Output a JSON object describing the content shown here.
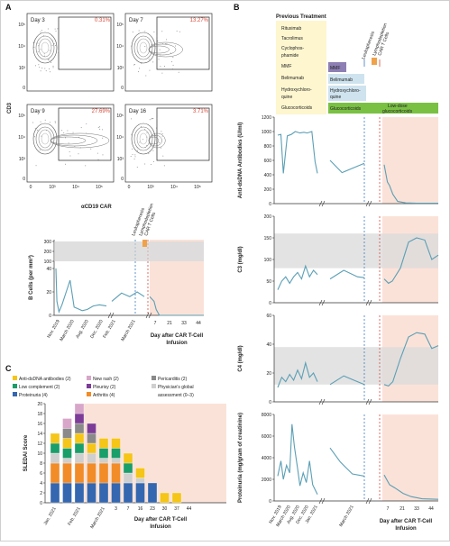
{
  "panels": {
    "a": "A",
    "b": "B",
    "c": "C"
  },
  "flow": {
    "ylabel": "CD3",
    "xlabel": "αCD19 CAR",
    "ticks": [
      "0",
      "10³",
      "10⁴",
      "10⁵"
    ],
    "plots": [
      {
        "day": "Day 3",
        "pct": "0.31%",
        "band": 0.0
      },
      {
        "day": "Day 7",
        "pct": "13.27%",
        "band": 0.5
      },
      {
        "day": "Day 9",
        "pct": "27.69%",
        "band": 1.0
      },
      {
        "day": "Day 16",
        "pct": "3.71%",
        "band": 0.15
      }
    ]
  },
  "labels": {
    "leukapheresis": "Leukapheresis",
    "lymphodepletion": "Lymphodepletion",
    "car_t": "CAR T Cells",
    "day_after": "Day after CAR T-Cell",
    "infusion": "Infusion"
  },
  "treatment": {
    "title": "Previous Treatment",
    "items": [
      "Rituximab",
      "Tacrolimus",
      "Cyclophos-",
      "phamide",
      "MMF",
      "Belimumab",
      "Hydroxychloro-",
      "quine",
      "Glucocorticoids"
    ],
    "bars": {
      "mmf": "MMF",
      "belimumab": "Belimumab",
      "hcq1": "Hydroxychloro-",
      "hcq2": "quine",
      "gluco": "Glucocorticoids",
      "lowdose1": "Low-dose",
      "lowdose2": "glucocorticoids"
    }
  },
  "colors": {
    "line": "#5b9fb5",
    "grey": "#dcdcdc",
    "pink": "#fbe2d8",
    "yellow": "#fdf6cf",
    "purple": "#8d7fb3",
    "green": "#7ac143",
    "blue_bar": "#cfe3ef"
  },
  "chart_data": [
    {
      "type": "line",
      "title": "",
      "ylabel": "B Cells (per mm³)",
      "yticks": [
        "0",
        "20",
        "40",
        "100",
        "200",
        "300"
      ],
      "x_pre": [
        "Nov. 2019",
        "March 2020",
        "Aug. 2020",
        "Dec. 2020"
      ],
      "x_mid": [
        "Feb. 2021",
        "March 2021"
      ],
      "x_post": [
        "7",
        "21",
        "33",
        "44"
      ],
      "normal_range": [
        100,
        300
      ],
      "series": [
        {
          "segment": "pre",
          "x": [
            0,
            0.02,
            0.06,
            0.12,
            0.28,
            0.36,
            0.42,
            0.52,
            0.62,
            0.74,
            0.86,
            1.0
          ],
          "y": [
            40,
            12,
            3,
            9,
            30,
            7,
            6,
            4,
            5,
            8,
            9,
            8
          ]
        },
        {
          "segment": "mid",
          "x": [
            0,
            0.3,
            0.55,
            0.78,
            1.0
          ],
          "y": [
            12,
            19,
            16,
            20,
            16
          ]
        },
        {
          "segment": "post",
          "x": [
            0,
            0.08,
            0.12,
            0.18,
            0.3,
            0.5,
            0.7,
            1.0
          ],
          "y": [
            16,
            12,
            5,
            0,
            0,
            0,
            0,
            0
          ]
        }
      ]
    },
    {
      "type": "bar",
      "ylabel": "SLEDAI Score",
      "ylim": [
        0,
        20
      ],
      "yticks": [
        "0",
        "2",
        "4",
        "6",
        "8",
        "10",
        "12",
        "14",
        "16",
        "18",
        "20"
      ],
      "categories": [
        "Jan. 2021",
        "",
        "Feb. 2021",
        "",
        "March 2021",
        "3",
        "7",
        "16",
        "23",
        "30",
        "37",
        "44"
      ],
      "legend": [
        {
          "name": "Anti-dsDNA antibodies (2)",
          "color": "#f5c518"
        },
        {
          "name": "New rash (2)",
          "color": "#d8a6c9"
        },
        {
          "name": "Pericarditis (2)",
          "color": "#8a8a8a"
        },
        {
          "name": "Low complement (2)",
          "color": "#1a9e6a"
        },
        {
          "name": "Pleurisy (2)",
          "color": "#7d3c98"
        },
        {
          "name": "Physician's global",
          "color": "#cfcfcf"
        },
        {
          "name": "Proteinuria (4)",
          "color": "#3567b0"
        },
        {
          "name": "Arthritis (4)",
          "color": "#f28c28"
        },
        {
          "name": "assessment (0–3)",
          "color": ""
        }
      ],
      "series": [
        {
          "name": "Proteinuria (4)",
          "values": [
            4,
            4,
            4,
            4,
            4,
            4,
            4,
            4,
            4,
            0,
            0,
            0
          ]
        },
        {
          "name": "Arthritis (4)",
          "values": [
            4,
            4,
            4,
            4,
            4,
            4,
            0,
            0,
            0,
            0,
            0,
            0
          ]
        },
        {
          "name": "Physician's global",
          "values": [
            2,
            1,
            2,
            2,
            1,
            1,
            2,
            1,
            0,
            0,
            0,
            0
          ]
        },
        {
          "name": "Low complement (2)",
          "values": [
            2,
            2,
            2,
            0,
            2,
            2,
            2,
            0,
            0,
            0,
            0,
            0
          ]
        },
        {
          "name": "Anti-dsDNA antibodies (2)",
          "values": [
            2,
            2,
            2,
            2,
            2,
            2,
            2,
            2,
            0,
            2,
            2,
            0
          ]
        },
        {
          "name": "Pericarditis (2)",
          "values": [
            0,
            2,
            2,
            2,
            0,
            0,
            0,
            0,
            0,
            0,
            0,
            0
          ]
        },
        {
          "name": "Pleurisy (2)",
          "values": [
            0,
            0,
            2,
            2,
            0,
            0,
            0,
            0,
            0,
            0,
            0,
            0
          ]
        },
        {
          "name": "New rash (2)",
          "values": [
            0,
            2,
            2,
            0,
            0,
            0,
            0,
            0,
            0,
            0,
            0,
            0
          ]
        }
      ]
    },
    {
      "type": "line",
      "ylabel": "Anti-dsDNA Antibodies (U/ml)",
      "ylim": [
        0,
        1200
      ],
      "yticks": [
        "0",
        "200",
        "400",
        "600",
        "800",
        "1000",
        "1200"
      ],
      "series": [
        {
          "segment": "pre",
          "x": [
            0,
            0.08,
            0.14,
            0.24,
            0.34,
            0.44,
            0.56,
            0.66,
            0.74,
            0.86,
            0.94,
            1.0
          ],
          "y": [
            950,
            960,
            420,
            940,
            960,
            1000,
            980,
            990,
            980,
            1000,
            580,
            420
          ]
        },
        {
          "segment": "mid",
          "x": [
            0,
            0.35,
            0.7,
            1.0
          ],
          "y": [
            600,
            430,
            500,
            560
          ]
        },
        {
          "segment": "post",
          "x": [
            0,
            0.06,
            0.1,
            0.16,
            0.25,
            0.4,
            0.6,
            1.0
          ],
          "y": [
            540,
            300,
            250,
            130,
            30,
            10,
            5,
            5
          ]
        }
      ]
    },
    {
      "type": "line",
      "ylabel": "C3 (mg/dl)",
      "ylim": [
        0,
        200
      ],
      "yticks": [
        "0",
        "50",
        "100",
        "150",
        "200"
      ],
      "normal_range": [
        80,
        160
      ],
      "series": [
        {
          "segment": "pre",
          "x": [
            0,
            0.1,
            0.2,
            0.3,
            0.4,
            0.5,
            0.6,
            0.7,
            0.8,
            0.9,
            1.0
          ],
          "y": [
            30,
            50,
            60,
            45,
            60,
            70,
            55,
            85,
            60,
            75,
            65
          ]
        },
        {
          "segment": "mid",
          "x": [
            0,
            0.4,
            0.8,
            1.0
          ],
          "y": [
            55,
            75,
            60,
            58
          ]
        },
        {
          "segment": "post",
          "x": [
            0,
            0.08,
            0.15,
            0.3,
            0.45,
            0.6,
            0.75,
            0.88,
            1.0
          ],
          "y": [
            55,
            45,
            50,
            80,
            140,
            150,
            145,
            100,
            110
          ]
        }
      ]
    },
    {
      "type": "line",
      "ylabel": "C4 (mg/dl)",
      "ylim": [
        0,
        60
      ],
      "yticks": [
        "0",
        "20",
        "40",
        "60"
      ],
      "normal_range": [
        12,
        38
      ],
      "series": [
        {
          "segment": "pre",
          "x": [
            0,
            0.1,
            0.2,
            0.3,
            0.4,
            0.5,
            0.6,
            0.7,
            0.8,
            0.9,
            1.0
          ],
          "y": [
            10,
            17,
            14,
            19,
            15,
            22,
            16,
            27,
            17,
            20,
            14
          ]
        },
        {
          "segment": "mid",
          "x": [
            0,
            0.4,
            0.8,
            1.0
          ],
          "y": [
            12,
            18,
            14,
            12
          ]
        },
        {
          "segment": "post",
          "x": [
            0,
            0.08,
            0.16,
            0.3,
            0.45,
            0.6,
            0.75,
            0.88,
            1.0
          ],
          "y": [
            12,
            11,
            14,
            30,
            45,
            48,
            47,
            37,
            39
          ]
        }
      ]
    },
    {
      "type": "line",
      "ylabel": "Proteinuria (mg/gram of creatinine)",
      "ylim": [
        0,
        8000
      ],
      "yticks": [
        "0",
        "2000",
        "4000",
        "6000",
        "8000"
      ],
      "x_pre": [
        "Nov. 2019",
        "March 2020",
        "Aug. 2020",
        "Dec. 2020",
        "Jan. 2021"
      ],
      "x_mid": [
        "March 2021"
      ],
      "x_post": [
        "7",
        "21",
        "33",
        "44"
      ],
      "series": [
        {
          "segment": "pre",
          "x": [
            0,
            0.08,
            0.14,
            0.22,
            0.3,
            0.36,
            0.42,
            0.5,
            0.56,
            0.64,
            0.72,
            0.8,
            0.88,
            1.0
          ],
          "y": [
            2300,
            3700,
            2000,
            3300,
            2600,
            7100,
            5000,
            3000,
            1400,
            2600,
            1700,
            3700,
            1500,
            600
          ]
        },
        {
          "segment": "mid",
          "x": [
            0,
            0.3,
            0.65,
            1.0
          ],
          "y": [
            4900,
            3600,
            2500,
            2300
          ]
        },
        {
          "segment": "post",
          "x": [
            0,
            0.1,
            0.2,
            0.35,
            0.5,
            0.7,
            1.0
          ],
          "y": [
            2400,
            1500,
            1200,
            700,
            400,
            200,
            150
          ]
        }
      ]
    }
  ]
}
